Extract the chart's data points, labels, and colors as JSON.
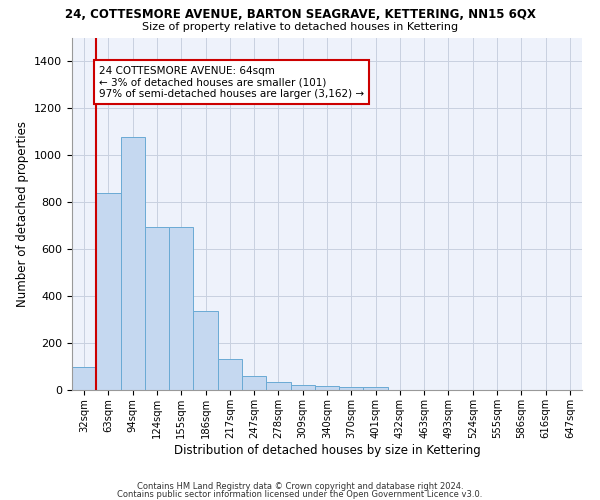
{
  "title": "24, COTTESMORE AVENUE, BARTON SEAGRAVE, KETTERING, NN15 6QX",
  "subtitle": "Size of property relative to detached houses in Kettering",
  "xlabel": "Distribution of detached houses by size in Kettering",
  "ylabel": "Number of detached properties",
  "bar_color": "#c5d8f0",
  "bar_edge_color": "#6aaad4",
  "categories": [
    "32sqm",
    "63sqm",
    "94sqm",
    "124sqm",
    "155sqm",
    "186sqm",
    "217sqm",
    "247sqm",
    "278sqm",
    "309sqm",
    "340sqm",
    "370sqm",
    "401sqm",
    "432sqm",
    "463sqm",
    "493sqm",
    "524sqm",
    "555sqm",
    "586sqm",
    "616sqm",
    "647sqm"
  ],
  "values": [
    100,
    840,
    1075,
    695,
    695,
    335,
    130,
    60,
    35,
    22,
    15,
    12,
    12,
    0,
    0,
    0,
    0,
    0,
    0,
    0,
    0
  ],
  "ylim": [
    0,
    1500
  ],
  "yticks": [
    0,
    200,
    400,
    600,
    800,
    1000,
    1200,
    1400
  ],
  "property_bin_index": 1,
  "annotation_text": "24 COTTESMORE AVENUE: 64sqm\n← 3% of detached houses are smaller (101)\n97% of semi-detached houses are larger (3,162) →",
  "vline_color": "#cc0000",
  "annotation_box_color": "#cc0000",
  "background_color": "#eef2fb",
  "footer_line1": "Contains HM Land Registry data © Crown copyright and database right 2024.",
  "footer_line2": "Contains public sector information licensed under the Open Government Licence v3.0."
}
